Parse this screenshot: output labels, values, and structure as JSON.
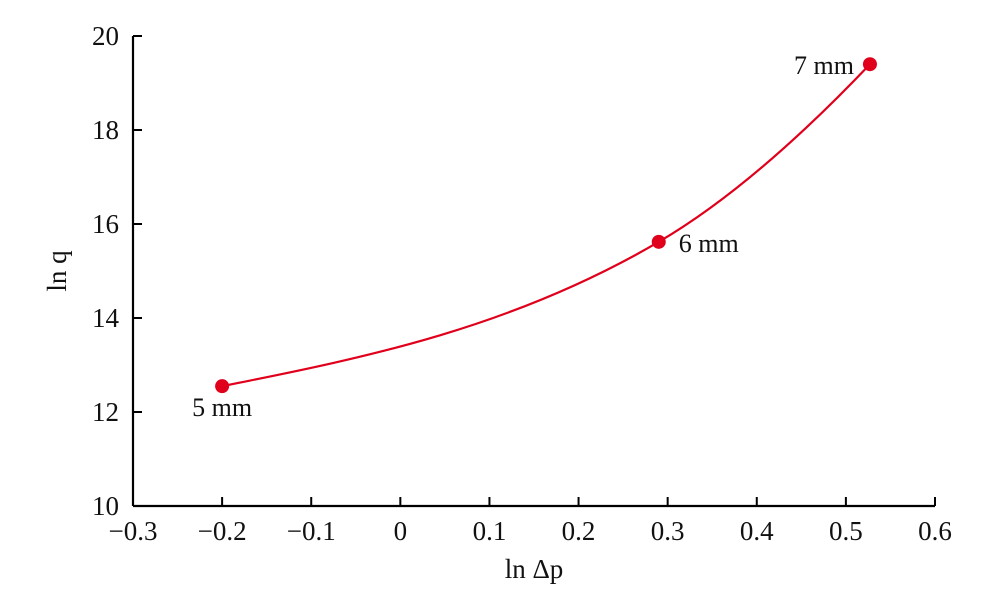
{
  "chart_data": {
    "type": "line",
    "xlabel": "ln Δp",
    "ylabel": "ln q",
    "xlim": [
      -0.3,
      0.6
    ],
    "ylim": [
      10,
      20
    ],
    "x_ticks": [
      "−0.3",
      "−0.2",
      "−0.1",
      "0",
      "0.1",
      "0.2",
      "0.3",
      "0.4",
      "0.5",
      "0.6"
    ],
    "x_tick_values": [
      -0.3,
      -0.2,
      -0.1,
      0,
      0.1,
      0.2,
      0.3,
      0.4,
      0.5,
      0.6
    ],
    "y_ticks": [
      "10",
      "12",
      "14",
      "16",
      "18",
      "20"
    ],
    "y_tick_values": [
      10,
      12,
      14,
      16,
      18,
      20
    ],
    "series": [
      {
        "points": [
          {
            "x": -0.2,
            "y": 12.55,
            "label": "5 mm"
          },
          {
            "x": 0.29,
            "y": 15.62,
            "label": "6 mm"
          },
          {
            "x": 0.527,
            "y": 19.4,
            "label": "7 mm"
          }
        ],
        "color": "#e0001b"
      }
    ],
    "grid": false,
    "legend": "none"
  }
}
